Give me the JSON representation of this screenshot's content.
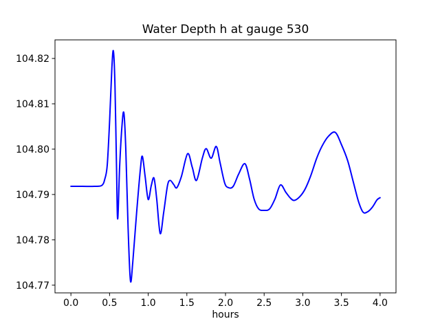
{
  "figure": {
    "background": "#ffffff",
    "text_color": "#000000",
    "spine_color": "#000000"
  },
  "chart_data": {
    "type": "line",
    "title": "Water Depth h at gauge 530",
    "xlabel": "hours",
    "ylabel": "",
    "grid": false,
    "legend": null,
    "xlim": [
      -0.206,
      4.206
    ],
    "ylim": [
      104.7683,
      104.8241
    ],
    "xticks": {
      "values": [
        0.0,
        0.5,
        1.0,
        1.5,
        2.0,
        2.5,
        3.0,
        3.5,
        4.0
      ],
      "labels": [
        "0.0",
        "0.5",
        "1.0",
        "1.5",
        "2.0",
        "2.5",
        "3.0",
        "3.5",
        "4.0"
      ]
    },
    "yticks": {
      "values": [
        104.77,
        104.78,
        104.79,
        104.8,
        104.81,
        104.82
      ],
      "labels": [
        "104.77",
        "104.78",
        "104.79",
        "104.80",
        "104.81",
        "104.82"
      ]
    },
    "series": [
      {
        "name": "water-depth",
        "color": "#0000ff",
        "line_width": 2,
        "x": [
          0.0,
          0.15,
          0.3,
          0.4,
          0.44,
          0.47,
          0.5,
          0.53,
          0.55,
          0.57,
          0.59,
          0.605,
          0.63,
          0.66,
          0.685,
          0.71,
          0.74,
          0.77,
          0.8,
          0.85,
          0.9,
          0.925,
          0.96,
          1.0,
          1.04,
          1.075,
          1.11,
          1.155,
          1.2,
          1.25,
          1.285,
          1.33,
          1.37,
          1.43,
          1.51,
          1.57,
          1.625,
          1.7,
          1.75,
          1.815,
          1.88,
          1.93,
          1.99,
          2.04,
          2.1,
          2.17,
          2.25,
          2.31,
          2.37,
          2.43,
          2.5,
          2.57,
          2.64,
          2.71,
          2.78,
          2.84,
          2.89,
          2.96,
          3.03,
          3.1,
          3.18,
          3.25,
          3.33,
          3.42,
          3.5,
          3.58,
          3.65,
          3.72,
          3.78,
          3.84,
          3.9,
          3.96,
          4.0
        ],
        "y": [
          104.7918,
          104.7918,
          104.7918,
          104.792,
          104.7935,
          104.7965,
          104.806,
          104.818,
          104.8216,
          104.814,
          104.796,
          104.7846,
          104.796,
          104.805,
          104.808,
          104.8,
          104.7825,
          104.771,
          104.775,
          104.786,
          104.7958,
          104.7984,
          104.794,
          104.7889,
          104.792,
          104.7936,
          104.789,
          104.7814,
          104.786,
          104.792,
          104.7931,
          104.7922,
          104.7915,
          104.794,
          104.799,
          104.796,
          104.7931,
          104.798,
          104.8001,
          104.798,
          104.8006,
          104.797,
          104.7925,
          104.7915,
          104.7918,
          104.7945,
          104.7968,
          104.7935,
          104.789,
          104.7868,
          104.7865,
          104.7868,
          104.789,
          104.7921,
          104.7905,
          104.7892,
          104.7887,
          104.7895,
          104.7912,
          104.794,
          104.798,
          104.8007,
          104.8028,
          104.8037,
          104.801,
          104.7975,
          104.793,
          104.7885,
          104.7861,
          104.7862,
          104.7872,
          104.7888,
          104.7893
        ]
      }
    ]
  }
}
